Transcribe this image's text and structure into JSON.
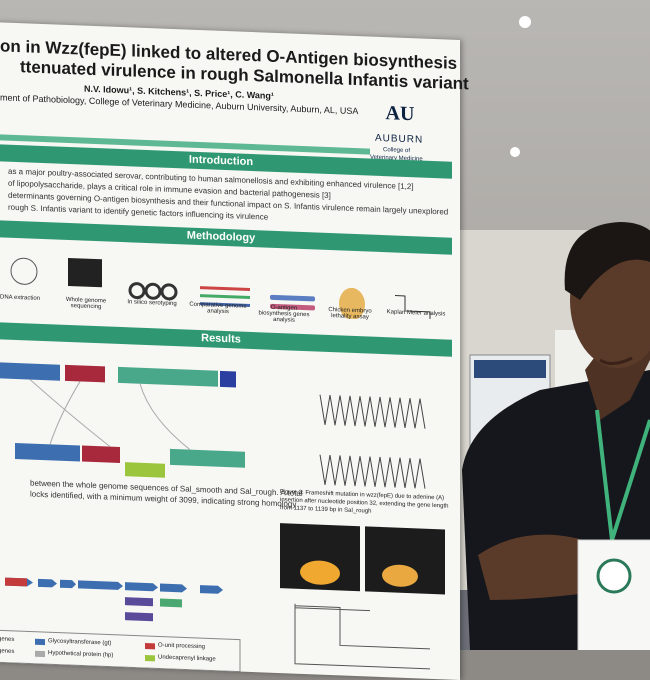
{
  "poster": {
    "title_lines": [
      "on in Wzz(fepE) linked to altered O-Antigen biosynthesis",
      "ttenuated virulence in rough Salmonella Infantis variant"
    ],
    "authors": "N.V. Idowu¹, S. Kitchens¹, S. Price¹, C. Wang¹",
    "affiliation": "ment of Pathobiology, College of Veterinary Medicine, Auburn University, Auburn, AL, USA",
    "logo": {
      "name": "AUBURN",
      "subtitle_lines": [
        "College of",
        "Veterinary Medicine"
      ]
    },
    "introduction": {
      "heading": "Introduction",
      "lines": [
        "as a major poultry-associated serovar, contributing to human salmonellosis and exhibiting enhanced virulence [1,2]",
        "of lipopolysaccharide, plays a critical role in immune evasion and bacterial pathogenesis [3]",
        "determinants governing O-antigen biosynthesis and their functional impact on S. Infantis virulence remain largely unexplored",
        "rough S. Infantis variant to identify genetic factors influencing its virulence"
      ]
    },
    "methodology": {
      "heading": "Methodology",
      "steps": [
        "DNA extraction",
        "Whole genome sequencing",
        "In silico serotyping",
        "Comparative genome analysis",
        "O-antigen biosynthesis genes analysis",
        "Chicken embryo lethality assay",
        "Kaplan Meier analysis"
      ]
    },
    "results": {
      "heading": "Results",
      "caption_lines": [
        "between the whole genome sequences of Sal_smooth and Sal_rough. A total",
        "locks identified, with a minimum weight of 3099, indicating strong homology"
      ],
      "figure3_lines": [
        "Figure 3: Frameshift mutation in wzz(fepE) due to adenine (A)",
        "insertion after nucleotide position 32, extending the gene length",
        "from 1137 to 1139 bp in Sal_rough"
      ],
      "legend": [
        "genes",
        "Glycosyltransferase (gt)",
        "O-unit processing",
        "genes",
        "Hypothetical protein (hp)",
        "Undecaprenyl linkage"
      ]
    }
  }
}
